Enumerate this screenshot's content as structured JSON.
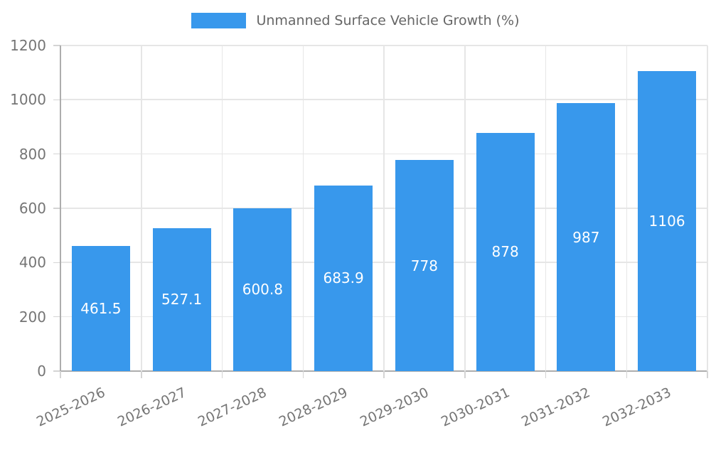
{
  "legend": {
    "label": "Unmanned Surface Vehicle Growth (%)"
  },
  "chart_data": {
    "type": "bar",
    "title": "Unmanned Surface Vehicle Growth (%)",
    "categories": [
      "2025-2026",
      "2026-2027",
      "2027-2028",
      "2028-2029",
      "2029-2030",
      "2030-2031",
      "2031-2032",
      "2032-2033"
    ],
    "values": [
      461.5,
      527.1,
      600.8,
      683.9,
      778,
      878,
      987,
      1106
    ],
    "value_labels": [
      "461.5",
      "527.1",
      "600.8",
      "683.9",
      "778",
      "878",
      "987",
      "1106"
    ],
    "xlabel": "",
    "ylabel": "",
    "ylim": [
      0,
      1200
    ],
    "ytick_step": 200,
    "ytick_labels": [
      "0",
      "200",
      "400",
      "600",
      "800",
      "1000",
      "1200"
    ],
    "grid": true,
    "legend_position": "top-center",
    "colors": {
      "bar": "#3898ec",
      "grid": "#e6e6e6",
      "axis": "#adadad",
      "tick": "#d4d4d4",
      "tick_text": "#757575",
      "legend_text": "#666666",
      "value_label": "#ffffff",
      "background": "#ffffff"
    }
  }
}
